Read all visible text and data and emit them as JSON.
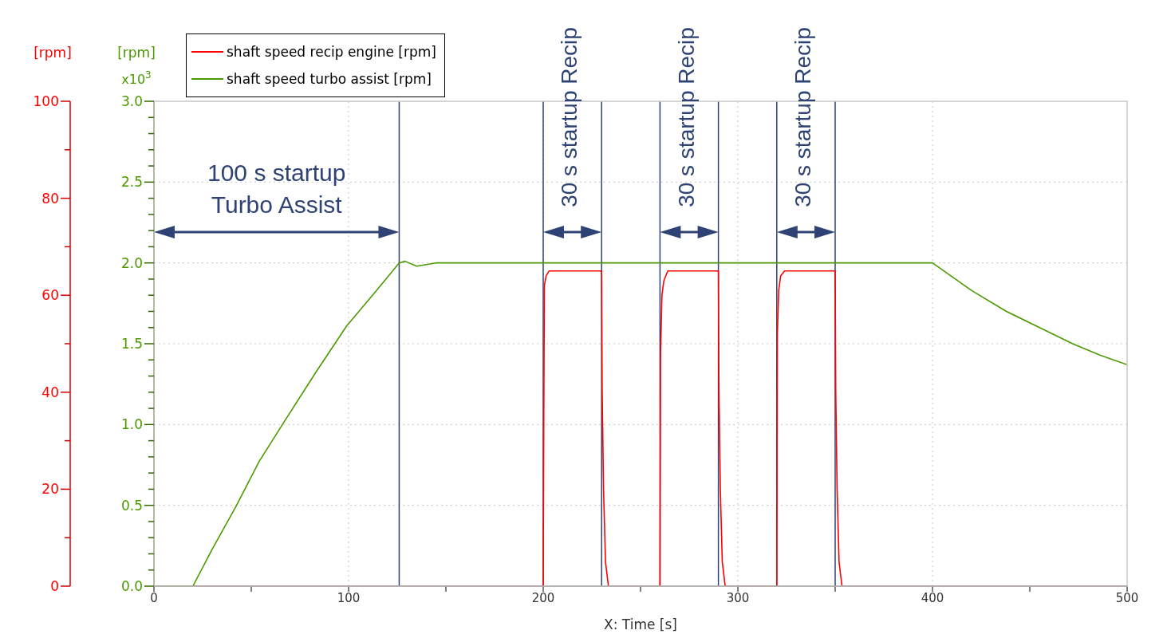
{
  "chart_data": {
    "type": "line",
    "xlabel": "X: Time [s]",
    "ylabel": "[rpm]",
    "y2label": "[rpm]",
    "xlim": [
      0,
      500
    ],
    "xticks": [
      0,
      {
        "value": 50,
        "label": null
      },
      100,
      {
        "value": 150,
        "label": null
      },
      200,
      {
        "value": 250,
        "label": null
      },
      300,
      {
        "value": 350,
        "label": null
      },
      400,
      {
        "value": 450,
        "label": null
      },
      500
    ],
    "ylim": [
      0,
      3
    ],
    "yticks": [
      {
        "value": 0,
        "label": "0.0"
      },
      {
        "value": 0.1,
        "label": null
      },
      {
        "value": 0.2,
        "label": null
      },
      {
        "value": 0.3,
        "label": null
      },
      {
        "value": 0.4,
        "label": null
      },
      {
        "value": 0.5,
        "label": "0.5"
      },
      {
        "value": 0.6,
        "label": null
      },
      {
        "value": 0.7,
        "label": null
      },
      {
        "value": 0.8,
        "label": null
      },
      {
        "value": 0.9,
        "label": null
      },
      {
        "value": 1,
        "label": "1.0"
      },
      {
        "value": 1.1,
        "label": null
      },
      {
        "value": 1.2,
        "label": null
      },
      {
        "value": 1.3,
        "label": null
      },
      {
        "value": 1.4,
        "label": null
      },
      {
        "value": 1.5,
        "label": "1.5"
      },
      {
        "value": 1.6,
        "label": null
      },
      {
        "value": 1.7,
        "label": null
      },
      {
        "value": 1.8,
        "label": null
      },
      {
        "value": 1.9,
        "label": null
      },
      {
        "value": 2,
        "label": "2.0"
      },
      {
        "value": 2.1,
        "label": null
      },
      {
        "value": 2.2,
        "label": null
      },
      {
        "value": 2.3,
        "label": null
      },
      {
        "value": 2.4,
        "label": null
      },
      {
        "value": 2.5,
        "label": "2.5"
      },
      {
        "value": 2.6,
        "label": null
      },
      {
        "value": 2.7,
        "label": null
      },
      {
        "value": 2.8,
        "label": null
      },
      {
        "value": 2.9,
        "label": null
      },
      {
        "value": 3,
        "label": "3.0"
      }
    ],
    "y2lim": [
      0,
      100
    ],
    "y2ticks": [
      0,
      {
        "value": 10,
        "label": null
      },
      20,
      {
        "value": 30,
        "label": null
      },
      40,
      {
        "value": 50,
        "label": null
      },
      60,
      {
        "value": 70,
        "label": null
      },
      80,
      {
        "value": 90,
        "label": null
      },
      100
    ],
    "series": [
      {
        "name": "shaft speed recip engine [rpm]",
        "color": "#ff0000",
        "axis": "y2",
        "x": [
          0,
          200,
          200.3,
          200.6,
          201.5,
          203,
          230,
          230.3,
          231,
          232,
          233.5,
          260,
          260.3,
          261,
          262,
          264,
          290,
          290.3,
          291,
          292,
          293.5,
          320,
          320.3,
          321,
          322,
          324,
          350,
          350.3,
          351,
          352,
          353.5,
          500
        ],
        "values": [
          0,
          0,
          35,
          62,
          64,
          65,
          65,
          40,
          20,
          5,
          0,
          0,
          48,
          60,
          63,
          65,
          65,
          40,
          20,
          5,
          0,
          0,
          52,
          61,
          64,
          65,
          65,
          40,
          20,
          5,
          0,
          0
        ]
      },
      {
        "name": "shaft speed turbo assist [rpm]",
        "color": "#4c9900",
        "x": [
          0,
          20,
          30,
          42,
          54,
          66,
          83,
          99,
          113,
          126,
          129,
          135,
          145,
          155,
          400,
          420,
          438,
          455,
          472,
          486,
          500
        ],
        "values": [
          0,
          0,
          0.23,
          0.49,
          0.77,
          1.0,
          1.32,
          1.61,
          1.81,
          2.0,
          2.01,
          1.98,
          2.0,
          2.0,
          2.0,
          1.83,
          1.7,
          1.6,
          1.5,
          1.43,
          1.37
        ]
      }
    ],
    "ref_lines": [
      {
        "axis": "x",
        "value": 126,
        "color": "#2e4374"
      },
      {
        "axis": "x",
        "value": 200,
        "color": "#2e4374"
      },
      {
        "axis": "x",
        "value": 230,
        "color": "#2e4374"
      },
      {
        "axis": "x",
        "value": 260,
        "color": "#2e4374"
      },
      {
        "axis": "x",
        "value": 290,
        "color": "#2e4374"
      },
      {
        "axis": "x",
        "value": 320,
        "color": "#2e4374"
      },
      {
        "axis": "x",
        "value": 350,
        "color": "#2e4374"
      }
    ],
    "annotations": [
      "x10$^{3}$",
      "100 s startup Turbo Assist",
      "30 s startup Recip",
      "30 s startup Recip",
      "30 s startup Recip"
    ],
    "grid": true,
    "legend": "top left"
  }
}
